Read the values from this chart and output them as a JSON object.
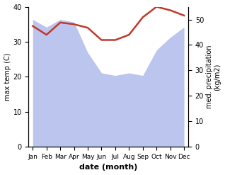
{
  "months": [
    "Jan",
    "Feb",
    "Mar",
    "Apr",
    "May",
    "Jun",
    "Jul",
    "Aug",
    "Sep",
    "Oct",
    "Nov",
    "Dec"
  ],
  "month_indices": [
    0,
    1,
    2,
    3,
    4,
    5,
    6,
    7,
    8,
    9,
    10,
    11
  ],
  "temp_max": [
    34.5,
    32.0,
    35.5,
    35.0,
    34.0,
    30.5,
    30.5,
    32.0,
    37.0,
    40.0,
    39.0,
    37.5
  ],
  "precip_kg": [
    50,
    47,
    50,
    49,
    37,
    29,
    28,
    29,
    28,
    38,
    43,
    47
  ],
  "temp_color": "#c0392b",
  "precip_fill_color": "#bbc5ee",
  "temp_ylim": [
    0,
    40
  ],
  "precip_ylim": [
    0,
    55
  ],
  "temp_yticks": [
    0,
    10,
    20,
    30,
    40
  ],
  "precip_yticks": [
    0,
    10,
    20,
    30,
    40,
    50
  ],
  "xlabel": "date (month)",
  "ylabel_left": "max temp (C)",
  "ylabel_right": "med. precipitation\n(kg/m2)",
  "fig_width": 3.18,
  "fig_height": 2.47,
  "dpi": 100
}
